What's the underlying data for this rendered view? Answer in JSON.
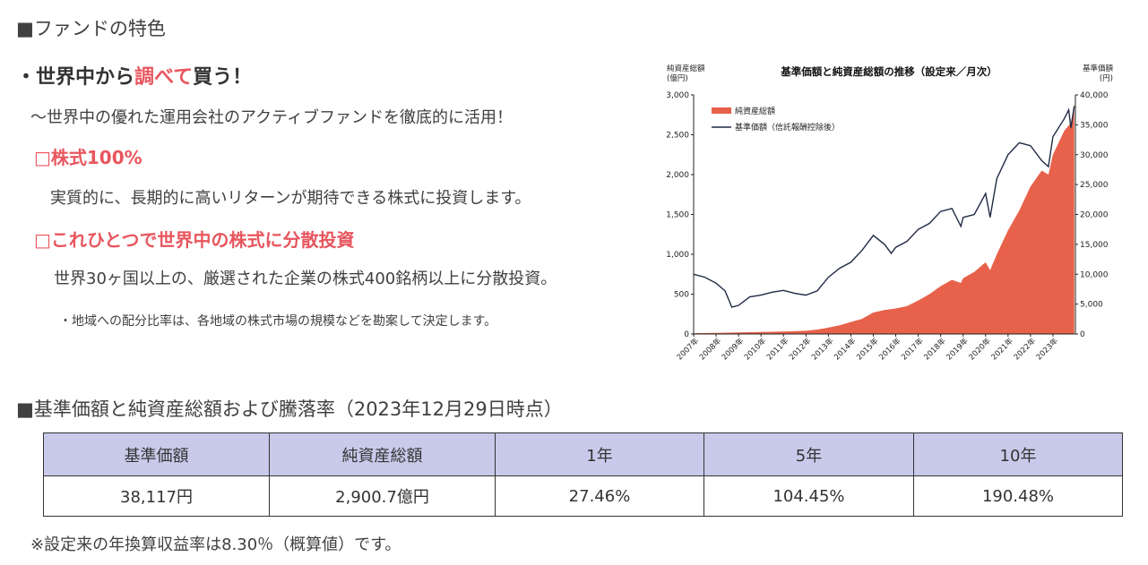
{
  "section1": {
    "title": "■ファンドの特色",
    "headline_pre": "・世界中から",
    "headline_hl": "調べて",
    "headline_post": "買う！",
    "subline": "〜世界中の優れた運用会社のアクティブファンドを徹底的に活用！",
    "feature1_title": "□株式100%",
    "feature1_body": "実質的に、長期的に高いリターンが期待できる株式に投資します。",
    "feature2_title": "□これひとつで世界中の株式に分散投資",
    "feature2_body": "世界30ヶ国以上の、厳選された企業の株式400銘柄以上に分散投資。",
    "feature2_note": "・地域への配分比率は、各地域の株式市場の規模などを勘案して決定します。"
  },
  "section2": {
    "title": "■基準価額と純資産総額および騰落率（2023年12月29日時点）",
    "headers": [
      "基準価額",
      "純資産総額",
      "1年",
      "5年",
      "10年"
    ],
    "values": [
      "38,117円",
      "2,900.7億円",
      "27.46%",
      "104.45%",
      "190.48%"
    ],
    "footnote": "※設定来の年換算収益率は8.30％（概算値）です。"
  },
  "colors": {
    "area": "#e8614a",
    "line": "#1f2a44",
    "header_bg": "#c9c9ea",
    "highlight": "#e8565e"
  },
  "chart_data": {
    "type": "line",
    "title": "基準価額と純資産総額の推移（設定来／月次）",
    "ylabel_left": "純資産総額\n(億円)",
    "ylabel_right": "基準価額\n(円)",
    "ylim_left": [
      0,
      3000
    ],
    "ylim_right": [
      0,
      40000
    ],
    "yticks_left": [
      "0",
      "500",
      "1,000",
      "1,500",
      "2,000",
      "2,500",
      "3,000"
    ],
    "yticks_right": [
      "0",
      "5,000",
      "10,000",
      "15,000",
      "20,000",
      "25,000",
      "30,000",
      "35,000",
      "40,000"
    ],
    "xticks": [
      "2007年",
      "2008年",
      "2009年",
      "2010年",
      "2011年",
      "2012年",
      "2013年",
      "2014年",
      "2015年",
      "2016年",
      "2017年",
      "2018年",
      "2019年",
      "2020年",
      "2021年",
      "2022年",
      "2023年"
    ],
    "legend_position": "top-left",
    "series": [
      {
        "name": "純資産総額",
        "type": "area",
        "axis": "left",
        "x": [
          2007.0,
          2008.0,
          2009.0,
          2010.0,
          2011.0,
          2012.0,
          2012.5,
          2013.0,
          2013.5,
          2014.0,
          2014.5,
          2015.0,
          2015.5,
          2016.0,
          2016.5,
          2017.0,
          2017.5,
          2018.0,
          2018.5,
          2018.9,
          2019.0,
          2019.5,
          2020.0,
          2020.2,
          2020.5,
          2021.0,
          2021.5,
          2022.0,
          2022.5,
          2022.8,
          2023.0,
          2023.5,
          2023.8,
          2023.95
        ],
        "values": [
          10,
          15,
          20,
          25,
          30,
          40,
          55,
          80,
          110,
          150,
          190,
          270,
          300,
          320,
          350,
          420,
          500,
          600,
          680,
          640,
          700,
          780,
          900,
          800,
          1000,
          1300,
          1550,
          1850,
          2050,
          2000,
          2250,
          2550,
          2650,
          2900
        ]
      },
      {
        "name": "基準価額（信託報酬控除後）",
        "type": "line",
        "axis": "right",
        "x": [
          2007.0,
          2007.5,
          2008.0,
          2008.4,
          2008.7,
          2009.0,
          2009.5,
          2010.0,
          2010.5,
          2011.0,
          2011.5,
          2012.0,
          2012.5,
          2013.0,
          2013.5,
          2014.0,
          2014.5,
          2015.0,
          2015.5,
          2015.8,
          2016.0,
          2016.5,
          2017.0,
          2017.5,
          2018.0,
          2018.5,
          2018.9,
          2019.0,
          2019.5,
          2020.0,
          2020.2,
          2020.5,
          2021.0,
          2021.5,
          2022.0,
          2022.5,
          2022.8,
          2023.0,
          2023.5,
          2023.7,
          2023.8,
          2023.95
        ],
        "values": [
          10000,
          9500,
          8500,
          7200,
          4500,
          4800,
          6200,
          6500,
          7000,
          7300,
          6800,
          6500,
          7200,
          9500,
          11000,
          12000,
          14000,
          16500,
          15000,
          13500,
          14500,
          15500,
          17500,
          18500,
          20500,
          21000,
          18000,
          19500,
          20000,
          23500,
          19500,
          26000,
          30000,
          32000,
          31500,
          29000,
          28000,
          33000,
          36000,
          37500,
          34500,
          38117
        ]
      }
    ]
  }
}
